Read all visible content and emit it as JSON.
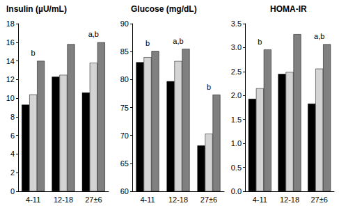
{
  "chart_data": [
    {
      "type": "bar",
      "title": "Insulin (µU/mL)",
      "categories": [
        "4-11",
        "12-18",
        "27±6"
      ],
      "series": [
        {
          "color": "#000000",
          "values": [
            9.3,
            12.3,
            10.6
          ]
        },
        {
          "color": "#d4d4d4",
          "values": [
            10.4,
            12.5,
            13.8
          ]
        },
        {
          "color": "#808080",
          "values": [
            14.0,
            15.8,
            16.0
          ]
        }
      ],
      "ylim": [
        0,
        18
      ],
      "yticks": [
        0,
        2,
        4,
        6,
        8,
        10,
        12,
        14,
        16,
        18
      ],
      "grid": false,
      "annotations": [
        {
          "category": "4-11",
          "text": "b"
        },
        {
          "category": "27±6",
          "text": "a,b"
        }
      ]
    },
    {
      "type": "bar",
      "title": "Glucose (mg/dL)",
      "categories": [
        "4-11",
        "12-18",
        "27±6"
      ],
      "series": [
        {
          "color": "#000000",
          "values": [
            83.1,
            79.7,
            68.2
          ]
        },
        {
          "color": "#d4d4d4",
          "values": [
            84.0,
            83.3,
            70.3
          ]
        },
        {
          "color": "#808080",
          "values": [
            85.1,
            85.5,
            77.3
          ]
        }
      ],
      "ylim": [
        60,
        90
      ],
      "yticks": [
        60,
        65,
        70,
        75,
        80,
        85,
        90
      ],
      "grid": false,
      "annotations": [
        {
          "category": "4-11",
          "text": "b"
        },
        {
          "category": "12-18",
          "text": "a,b"
        },
        {
          "category": "27±6",
          "text": "b"
        }
      ]
    },
    {
      "type": "bar",
      "title": "HOMA-IR",
      "categories": [
        "4-11",
        "12-18",
        "27±6"
      ],
      "series": [
        {
          "color": "#000000",
          "values": [
            1.93,
            2.45,
            1.83
          ]
        },
        {
          "color": "#d4d4d4",
          "values": [
            2.15,
            2.49,
            2.56
          ]
        },
        {
          "color": "#808080",
          "values": [
            2.96,
            3.28,
            3.07
          ]
        }
      ],
      "ylim": [
        0,
        3.5
      ],
      "yticks": [
        {
          "value": 0,
          "label": "0.0"
        },
        0.5,
        {
          "value": 1,
          "label": "1.0"
        },
        1.5,
        {
          "value": 2,
          "label": "2.0"
        },
        2.5,
        {
          "value": 3,
          "label": "3.0"
        },
        3.5
      ],
      "grid": false,
      "annotations": [
        {
          "category": "4-11",
          "text": "b"
        },
        {
          "category": "27±6",
          "text": "a,b"
        }
      ]
    }
  ]
}
